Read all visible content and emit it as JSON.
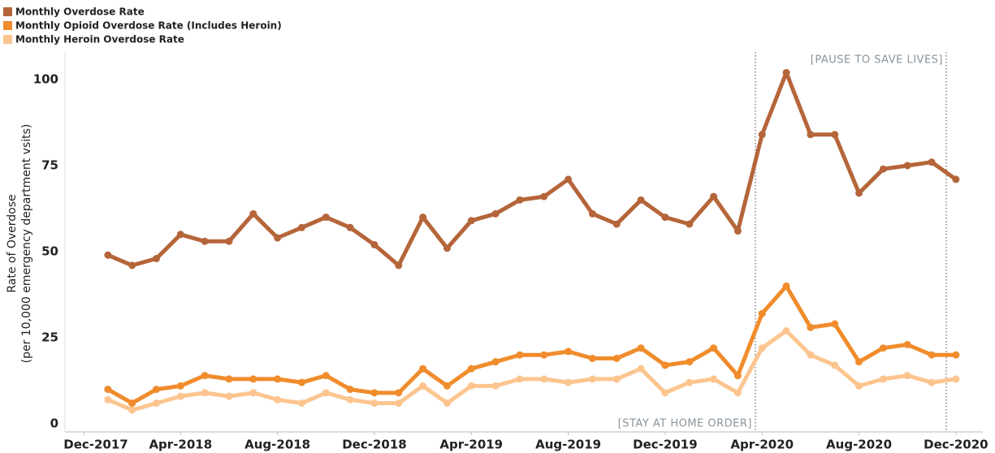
{
  "chart_data": {
    "type": "line",
    "y_label": [
      "Rate of Overdose",
      "(per 10,000 emergency department vsits)"
    ],
    "categories": [
      "Dec-2017",
      null,
      null,
      null,
      "Apr-2018",
      null,
      null,
      null,
      "Aug-2018",
      null,
      null,
      null,
      "Dec-2018",
      null,
      null,
      null,
      "Apr-2019",
      null,
      null,
      null,
      "Aug-2019",
      null,
      null,
      null,
      "Dec-2019",
      null,
      null,
      null,
      "Apr-2020",
      null,
      null,
      null,
      "Aug-2020",
      null,
      null,
      null,
      "Dec-2020"
    ],
    "series": [
      {
        "name": "Monthly Overdose Rate",
        "color": "#b5653a",
        "values": [
          null,
          49,
          46,
          48,
          55,
          53,
          53,
          61,
          54,
          57,
          60,
          57,
          52,
          46,
          60,
          51,
          59,
          61,
          65,
          66,
          71,
          61,
          58,
          65,
          60,
          58,
          66,
          56,
          84,
          102,
          84,
          84,
          67,
          74,
          75,
          76,
          71
        ]
      },
      {
        "name": "Monthly Opioid Overdose Rate (Includes Heroin)",
        "color": "#f08c2c",
        "values": [
          null,
          10,
          6,
          10,
          11,
          14,
          13,
          13,
          13,
          12,
          14,
          10,
          9,
          9,
          16,
          11,
          16,
          18,
          20,
          20,
          21,
          19,
          19,
          22,
          17,
          18,
          22,
          14,
          32,
          40,
          28,
          29,
          18,
          22,
          23,
          20,
          20
        ]
      },
      {
        "name": "Monthly Heroin Overdose Rate",
        "color": "#fcc58f",
        "values": [
          null,
          7,
          4,
          6,
          8,
          9,
          8,
          9,
          7,
          6,
          9,
          7,
          6,
          6,
          11,
          6,
          11,
          11,
          13,
          13,
          12,
          13,
          13,
          16,
          9,
          12,
          13,
          9,
          22,
          27,
          20,
          17,
          11,
          13,
          14,
          12,
          13
        ]
      }
    ],
    "ylim": [
      -2,
      108
    ],
    "yticks": [
      0,
      25,
      50,
      75,
      100
    ],
    "annotations": [
      "[STAY AT HOME ORDER]",
      "[PAUSE TO SAVE LIVES]"
    ],
    "legend": "top-left"
  }
}
